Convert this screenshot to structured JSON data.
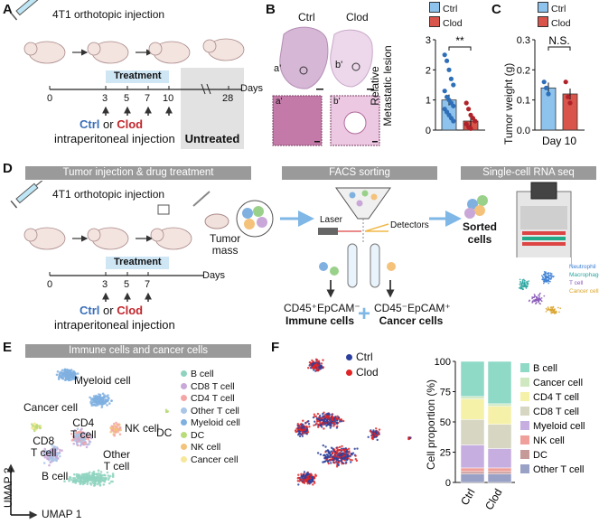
{
  "panels": {
    "A": "A",
    "B": "B",
    "C": "C",
    "D": "D",
    "E": "E",
    "F": "F"
  },
  "panelA": {
    "title": "4T1 orthotopic injection",
    "treatment": "Treatment",
    "ticks": [
      "0",
      "3",
      "5",
      "7",
      "10",
      "28"
    ],
    "days": "Days",
    "ctrl": "Ctrl",
    "or": "or",
    "clod": "Clod",
    "route": "intraperitoneal injection",
    "untreated": "Untreated"
  },
  "panelB": {
    "ctrl": "Ctrl",
    "clod": "Clod",
    "a_label": "a'",
    "b_label": "b'",
    "legend_ctrl": "Ctrl",
    "legend_clod": "Clod",
    "ylabel_line1": "Relative",
    "ylabel_line2": "Metastatic lesion",
    "sig": "**",
    "yticks": [
      "0",
      "1",
      "2",
      "3"
    ]
  },
  "panelC": {
    "legend_ctrl": "Ctrl",
    "legend_clod": "Clod",
    "ylabel": "Tumor weight (g)",
    "sig": "N.S.",
    "yticks": [
      "0.0",
      "0.1",
      "0.2",
      "0.3"
    ],
    "xlabel": "Day 10"
  },
  "panelD": {
    "hdr1": "Tumor injection & drug treatment",
    "hdr2": "FACS sorting",
    "hdr3": "Single-cell RNA seq",
    "title": "4T1 orthotopic injection",
    "treatment": "Treatment",
    "ticks": [
      "0",
      "3",
      "5",
      "7"
    ],
    "days": "Days",
    "ctrl": "Ctrl",
    "or": "or",
    "clod": "Clod",
    "route": "intraperitoneal injection",
    "tumor_mass_1": "Tumor",
    "tumor_mass_2": "mass",
    "laser": "Laser",
    "detectors": "Detectors",
    "sorted_1": "Sorted",
    "sorted_2": "cells",
    "immune_markers": "CD45⁺EpCAM⁻",
    "immune_label": "Immune cells",
    "plus": "+",
    "cancer_markers": "CD45⁻EpCAM⁺",
    "cancer_label": "Cancer cells",
    "mini_legend": [
      "Neutrophil",
      "Macrophage",
      "T cell",
      "Cancer cell"
    ]
  },
  "panelE": {
    "hdr": "Immune cells and cancer cells",
    "labels": {
      "myeloid": "Myeloid cell",
      "cancer": "Cancer cell",
      "cd4_1": "CD4",
      "cd4_2": "T cell",
      "cd8_1": "CD8",
      "cd8_2": "T cell",
      "nk": "NK cell",
      "dc": "DC",
      "other_1": "Other",
      "other_2": "T cell",
      "bcell": "B cell"
    },
    "axis_y": "UMAP 2",
    "axis_x": "UMAP 1",
    "legend": [
      {
        "name": "B cell",
        "color": "#8fd3bf"
      },
      {
        "name": "CD8 T cell",
        "color": "#c9a7d8"
      },
      {
        "name": "CD4 T cell",
        "color": "#f4a6a6"
      },
      {
        "name": "Other T cell",
        "color": "#a9c6e8"
      },
      {
        "name": "Myeloid cell",
        "color": "#7fb0e0"
      },
      {
        "name": "DC",
        "color": "#b9dc7a"
      },
      {
        "name": "NK cell",
        "color": "#f4c27a"
      },
      {
        "name": "Cancer cell",
        "color": "#f7e79a"
      }
    ]
  },
  "panelF": {
    "legend_ctrl": "Ctrl",
    "legend_clod": "Clod",
    "ctrl_color": "#2b3f9e",
    "clod_color": "#e02424",
    "ylabel": "Cell proportion (%)",
    "yticks": [
      "0",
      "25",
      "50",
      "75",
      "100"
    ]
  },
  "chart_data": [
    {
      "type": "bar",
      "title": "",
      "ylabel": "Relative Metastatic lesion",
      "categories": [
        "Ctrl",
        "Clod"
      ],
      "values": [
        1.0,
        0.3
      ],
      "ylim": [
        0,
        3
      ],
      "series_points": {
        "Ctrl": [
          2.5,
          2.3,
          2.0,
          1.7,
          1.5,
          1.3,
          1.1,
          1.0,
          0.9,
          0.8,
          0.7,
          0.6,
          0.5,
          0.4,
          0.3
        ],
        "Clod": [
          0.9,
          0.7,
          0.5,
          0.4,
          0.3,
          0.2,
          0.1,
          0.05
        ]
      },
      "annotation": "**"
    },
    {
      "type": "bar",
      "title": "",
      "xlabel": "Day 10",
      "ylabel": "Tumor weight (g)",
      "categories": [
        "Ctrl",
        "Clod"
      ],
      "values": [
        0.14,
        0.12
      ],
      "ylim": [
        0,
        0.3
      ],
      "series_points": {
        "Ctrl": [
          0.16,
          0.14,
          0.12
        ],
        "Clod": [
          0.16,
          0.11,
          0.09
        ]
      },
      "annotation": "N.S."
    },
    {
      "type": "bar",
      "title": "",
      "ylabel": "Cell proportion (%)",
      "categories": [
        "Ctrl",
        "Clod"
      ],
      "ylim": [
        0,
        100
      ],
      "series": [
        {
          "name": "Other T cell",
          "color": "#9aa1c6",
          "values": [
            7,
            7
          ]
        },
        {
          "name": "DC",
          "color": "#c79a9a",
          "values": [
            2,
            2
          ]
        },
        {
          "name": "NK cell",
          "color": "#f0a09a",
          "values": [
            3,
            3
          ]
        },
        {
          "name": "Myeloid cell",
          "color": "#c7aee0",
          "values": [
            19,
            16
          ]
        },
        {
          "name": "CD8 T cell",
          "color": "#d6d6c2",
          "values": [
            21,
            20
          ]
        },
        {
          "name": "CD4 T cell",
          "color": "#f6f1a8",
          "values": [
            17,
            15
          ]
        },
        {
          "name": "Cancer cell",
          "color": "#cfe8c0",
          "values": [
            2,
            2
          ]
        },
        {
          "name": "B cell",
          "color": "#8fd9c7",
          "values": [
            29,
            35
          ]
        }
      ]
    }
  ]
}
